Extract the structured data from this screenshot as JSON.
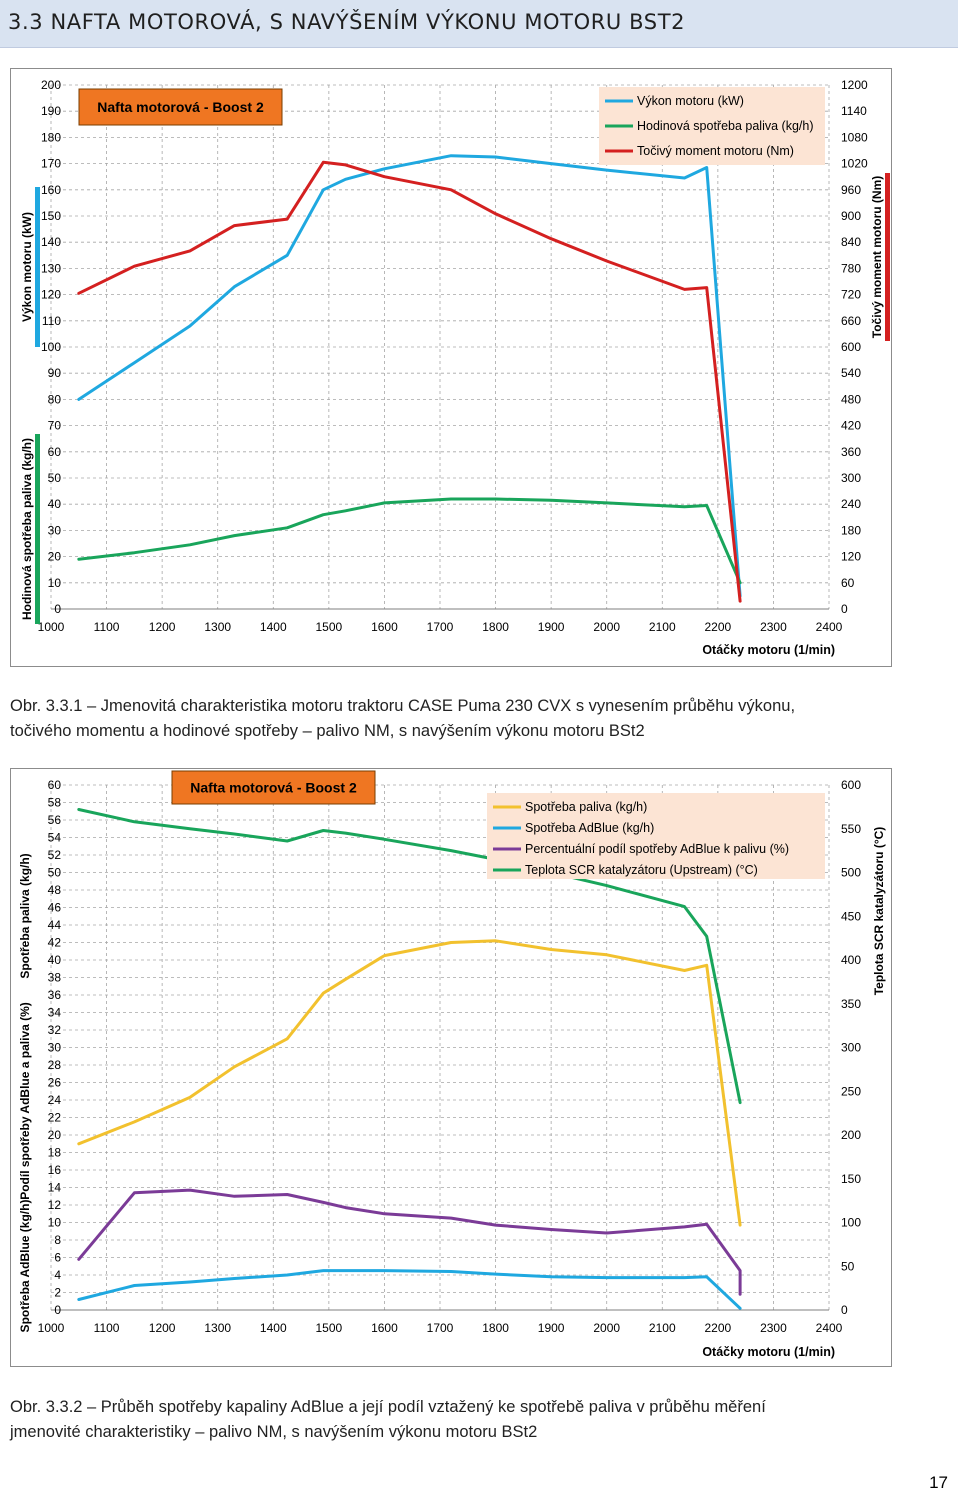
{
  "heading": "3.3 NAFTA MOTOROVÁ, S NAVÝŠENÍM VÝKONU MOTORU BST2",
  "page_number": "17",
  "captions": {
    "c1_l1": "Obr. 3.3.1 – Jmenovitá charakteristika motoru traktoru CASE Puma 230 CVX s vynesením průběhu výkonu,",
    "c1_l2": "točivého momentu a hodinové spotřeby – palivo NM, s navýšením výkonu motoru BSt2",
    "c2_l1": "Obr. 3.3.2 – Průběh spotřeby kapaliny AdBlue a její podíl vztažený ke spotřebě paliva v průběhu měření",
    "c2_l2": "jmenovité charakteristiky – palivo NM, s navýšením výkonu motoru BSt2"
  },
  "chart_data": [
    {
      "type": "line",
      "title": "Nafta motorová - Boost 2",
      "xlabel": "Otáčky motoru (1/min)",
      "ylabel_left": [
        "Výkon motoru (kW)",
        "Hodinová spotřeba paliva (kg/h)"
      ],
      "ylabel_right": "Točivý moment motoru (Nm)",
      "xlim": [
        1000,
        2400
      ],
      "ylim_left": [
        0,
        200
      ],
      "ylim_right": [
        0,
        1200
      ],
      "x_ticks": [
        "1000",
        "1100",
        "1200",
        "1300",
        "1400",
        "1500",
        "1600",
        "1700",
        "1800",
        "1900",
        "2000",
        "2100",
        "2200",
        "2300",
        "2400"
      ],
      "y_ticks_left": [
        "0",
        "10",
        "20",
        "30",
        "40",
        "50",
        "60",
        "70",
        "80",
        "90",
        "100",
        "110",
        "120",
        "130",
        "140",
        "150",
        "160",
        "170",
        "180",
        "190",
        "200"
      ],
      "y_ticks_right": [
        "0",
        "60",
        "120",
        "180",
        "240",
        "300",
        "360",
        "420",
        "480",
        "540",
        "600",
        "660",
        "720",
        "780",
        "840",
        "900",
        "960",
        "1020",
        "1080",
        "1140",
        "1200"
      ],
      "grid": true,
      "legend_position": "top-right",
      "series": [
        {
          "name": "Výkon motoru (kW)",
          "axis": "left",
          "color": "#1fa8e0",
          "x": [
            1050,
            1150,
            1250,
            1330,
            1425,
            1490,
            1530,
            1600,
            1720,
            1800,
            1900,
            2000,
            2140,
            2180,
            2240
          ],
          "y": [
            80,
            94,
            108,
            123,
            135,
            160,
            164,
            168,
            173,
            172.5,
            170,
            167.5,
            164.5,
            168.5,
            5
          ]
        },
        {
          "name": "Hodinová spotřeba paliva (kg/h)",
          "axis": "left",
          "color": "#19a55b",
          "x": [
            1050,
            1150,
            1250,
            1330,
            1425,
            1490,
            1530,
            1600,
            1720,
            1800,
            1900,
            2000,
            2140,
            2180,
            2240
          ],
          "y": [
            19,
            21.5,
            24.5,
            28,
            31,
            36,
            37.5,
            40.5,
            42,
            42,
            41.5,
            40.5,
            39,
            39.5,
            10
          ]
        },
        {
          "name": "Točivý moment motoru (Nm)",
          "axis": "right",
          "color": "#d42020",
          "x": [
            1050,
            1150,
            1250,
            1330,
            1425,
            1490,
            1530,
            1600,
            1720,
            1800,
            1900,
            2000,
            2140,
            2180,
            2240
          ],
          "y": [
            723,
            785,
            820,
            878,
            893,
            1023,
            1017,
            990,
            960,
            905,
            848,
            797,
            732,
            736,
            18
          ]
        }
      ]
    },
    {
      "type": "line",
      "title": "Nafta motorová - Boost 2",
      "xlabel": "Otáčky motoru (1/min)",
      "ylabel_left": [
        "Spotřeba AdBlue (kg/h)",
        "Podíl spotřeby AdBlue a paliva (%)",
        "Spotřeba paliva (kg/h)"
      ],
      "ylabel_right": "Teplota SCR katalyzátoru (°C)",
      "xlim": [
        1000,
        2400
      ],
      "ylim_left": [
        0,
        60
      ],
      "ylim_right": [
        0,
        600
      ],
      "x_ticks": [
        "1000",
        "1100",
        "1200",
        "1300",
        "1400",
        "1500",
        "1600",
        "1700",
        "1800",
        "1900",
        "2000",
        "2100",
        "2200",
        "2300",
        "2400"
      ],
      "y_ticks_left": [
        "0",
        "2",
        "4",
        "6",
        "8",
        "10",
        "12",
        "14",
        "16",
        "18",
        "20",
        "22",
        "24",
        "26",
        "28",
        "30",
        "32",
        "34",
        "36",
        "38",
        "40",
        "42",
        "44",
        "46",
        "48",
        "50",
        "52",
        "54",
        "56",
        "58",
        "60"
      ],
      "y_ticks_right": [
        "0",
        "50",
        "100",
        "150",
        "200",
        "250",
        "300",
        "350",
        "400",
        "450",
        "500",
        "550",
        "600"
      ],
      "grid": true,
      "legend_position": "top-right",
      "series": [
        {
          "name": "Spotřeba paliva (kg/h)",
          "axis": "left",
          "color": "#f2c12e",
          "x": [
            1050,
            1150,
            1250,
            1330,
            1425,
            1490,
            1530,
            1600,
            1720,
            1800,
            1900,
            2000,
            2140,
            2180,
            2240
          ],
          "y": [
            19,
            21.5,
            24.3,
            27.8,
            31,
            36.2,
            37.8,
            40.5,
            42,
            42.2,
            41.2,
            40.6,
            38.8,
            39.4,
            9.7
          ]
        },
        {
          "name": "Spotřeba AdBlue (kg/h)",
          "axis": "left",
          "color": "#1fa8e0",
          "x": [
            1050,
            1150,
            1250,
            1330,
            1425,
            1490,
            1530,
            1600,
            1720,
            1800,
            1900,
            2000,
            2140,
            2180,
            2240
          ],
          "y": [
            1.2,
            2.8,
            3.2,
            3.6,
            4,
            4.5,
            4.5,
            4.5,
            4.4,
            4.1,
            3.8,
            3.7,
            3.7,
            3.8,
            0.2
          ]
        },
        {
          "name": "Percentuální podíl spotřeby AdBlue k palivu (%)",
          "axis": "left",
          "color": "#7b3b97",
          "x": [
            1050,
            1150,
            1250,
            1330,
            1425,
            1490,
            1530,
            1600,
            1720,
            1800,
            1900,
            2000,
            2140,
            2180,
            2240,
            2240
          ],
          "y": [
            5.8,
            13.4,
            13.7,
            13,
            13.2,
            12.3,
            11.7,
            11,
            10.5,
            9.7,
            9.2,
            8.8,
            9.5,
            9.8,
            4.5,
            1.8
          ]
        },
        {
          "name": "Teplota SCR katalyzátoru (Upstream) (°C)",
          "axis": "right",
          "color": "#19a55b",
          "x": [
            1050,
            1150,
            1250,
            1330,
            1425,
            1490,
            1530,
            1600,
            1720,
            1800,
            1900,
            2000,
            2140,
            2180,
            2240
          ],
          "y": [
            572,
            558,
            550,
            544,
            536,
            548,
            545,
            538,
            525,
            515,
            500,
            485,
            461,
            427,
            237
          ]
        }
      ]
    }
  ]
}
